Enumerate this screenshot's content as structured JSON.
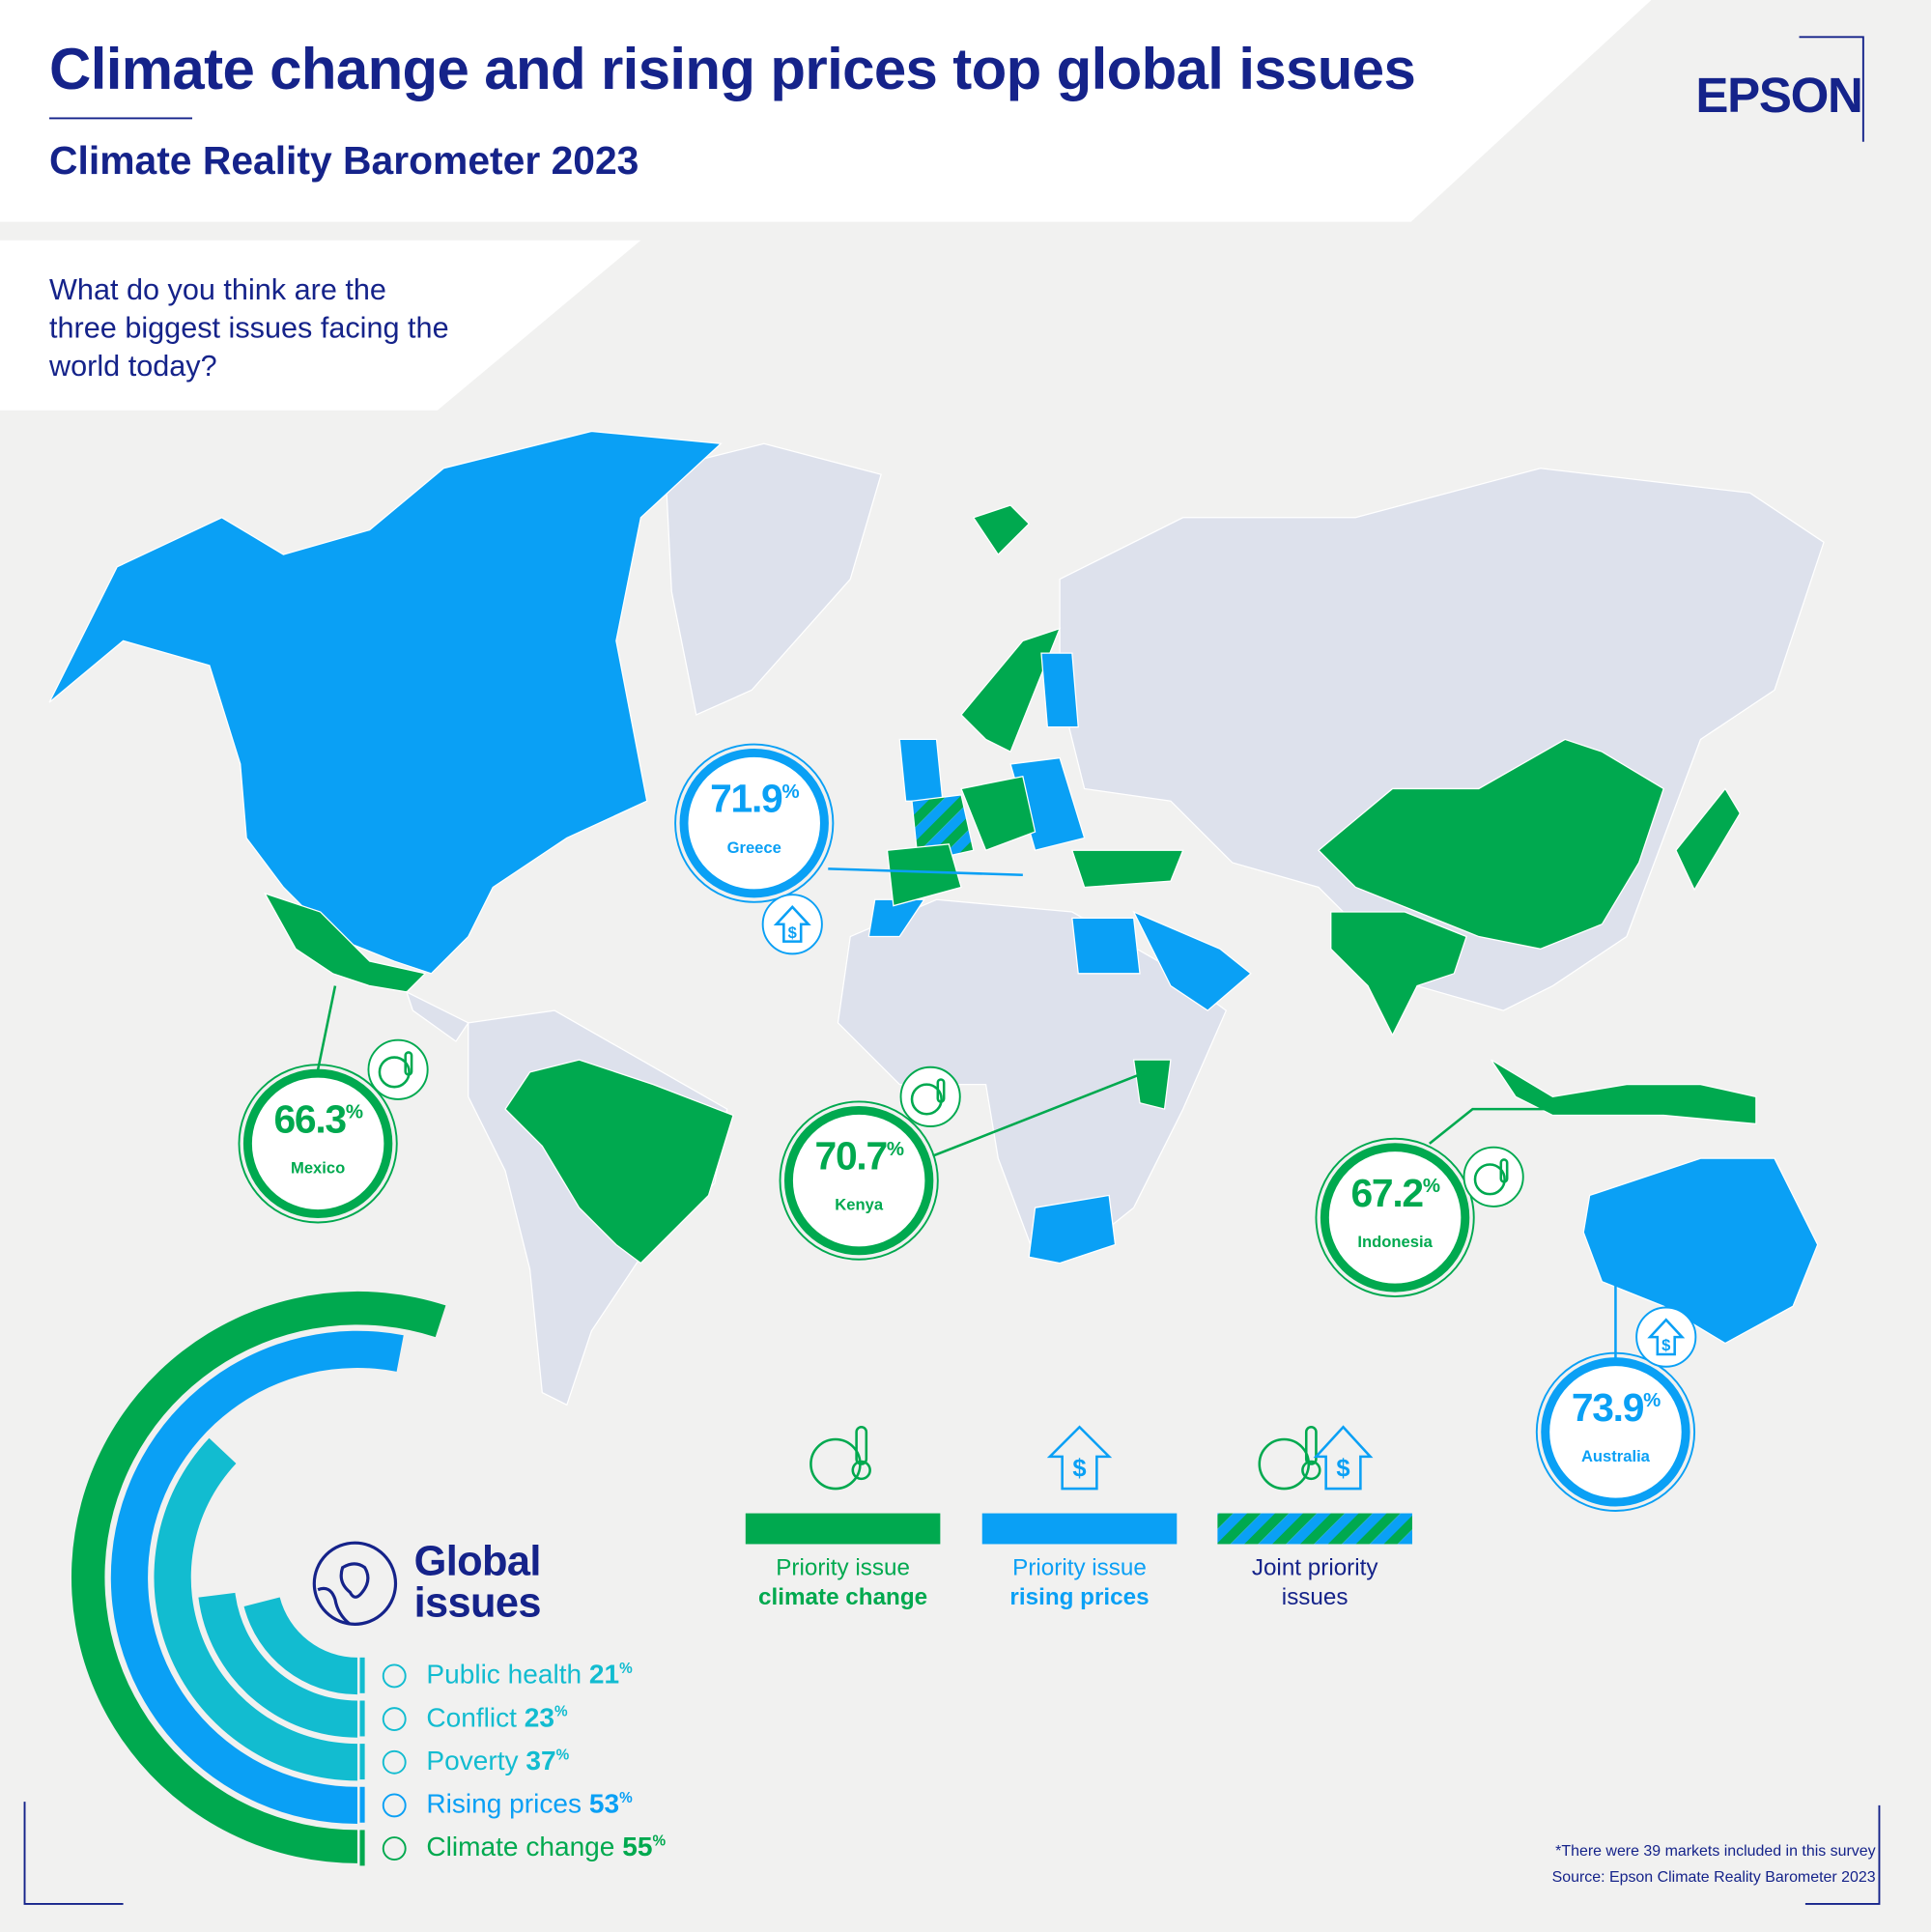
{
  "header": {
    "title": "Climate change and rising prices top global issues",
    "subtitle": "Climate Reality Barometer 2023",
    "logo": "EPSON"
  },
  "question": "What do you think are the three biggest issues facing the world today?",
  "colors": {
    "navy": "#15238a",
    "climate_green": "#00a94f",
    "prices_blue": "#0aa0f5",
    "teal": "#12bcd0",
    "land_grey": "#dde1ec"
  },
  "callouts": [
    {
      "country": "Greece",
      "value": "71.9",
      "unit": "%",
      "issue": "rising prices",
      "icon": "house-dollar-icon"
    },
    {
      "country": "Mexico",
      "value": "66.3",
      "unit": "%",
      "issue": "climate change",
      "icon": "globe-thermometer-icon"
    },
    {
      "country": "Kenya",
      "value": "70.7",
      "unit": "%",
      "issue": "climate change",
      "icon": "globe-thermometer-icon"
    },
    {
      "country": "Indonesia",
      "value": "67.2",
      "unit": "%",
      "issue": "climate change",
      "icon": "globe-thermometer-icon"
    },
    {
      "country": "Australia",
      "value": "73.9",
      "unit": "%",
      "issue": "rising prices",
      "icon": "house-dollar-icon"
    }
  ],
  "legend": [
    {
      "line1": "Priority issue",
      "line2": "climate change",
      "color": "#00a94f"
    },
    {
      "line1": "Priority issue",
      "line2": "rising prices",
      "color": "#0aa0f5"
    },
    {
      "line1": "Joint priority",
      "line2": "issues",
      "color": "striped"
    }
  ],
  "global_issues": {
    "title_line1": "Global",
    "title_line2": "issues",
    "items": [
      {
        "label": "Public health",
        "value": 21,
        "display": "21",
        "unit": "%",
        "color": "#12bcd0",
        "icon": "hands-cross-icon"
      },
      {
        "label": "Conflict",
        "value": 23,
        "display": "23",
        "unit": "%",
        "color": "#12bcd0",
        "icon": "conflict-icon"
      },
      {
        "label": "Poverty",
        "value": 37,
        "display": "37",
        "unit": "%",
        "color": "#12bcd0",
        "icon": "hand-coin-icon"
      },
      {
        "label": "Rising prices",
        "value": 53,
        "display": "53",
        "unit": "%",
        "color": "#0aa0f5",
        "icon": "house-dollar-icon"
      },
      {
        "label": "Climate change",
        "value": 55,
        "display": "55",
        "unit": "%",
        "color": "#00a94f",
        "icon": "globe-thermometer-icon"
      }
    ]
  },
  "footnote": {
    "line1": "*There were 39 markets included in this survey",
    "line2": "Source: Epson Climate Reality Barometer 2023"
  }
}
